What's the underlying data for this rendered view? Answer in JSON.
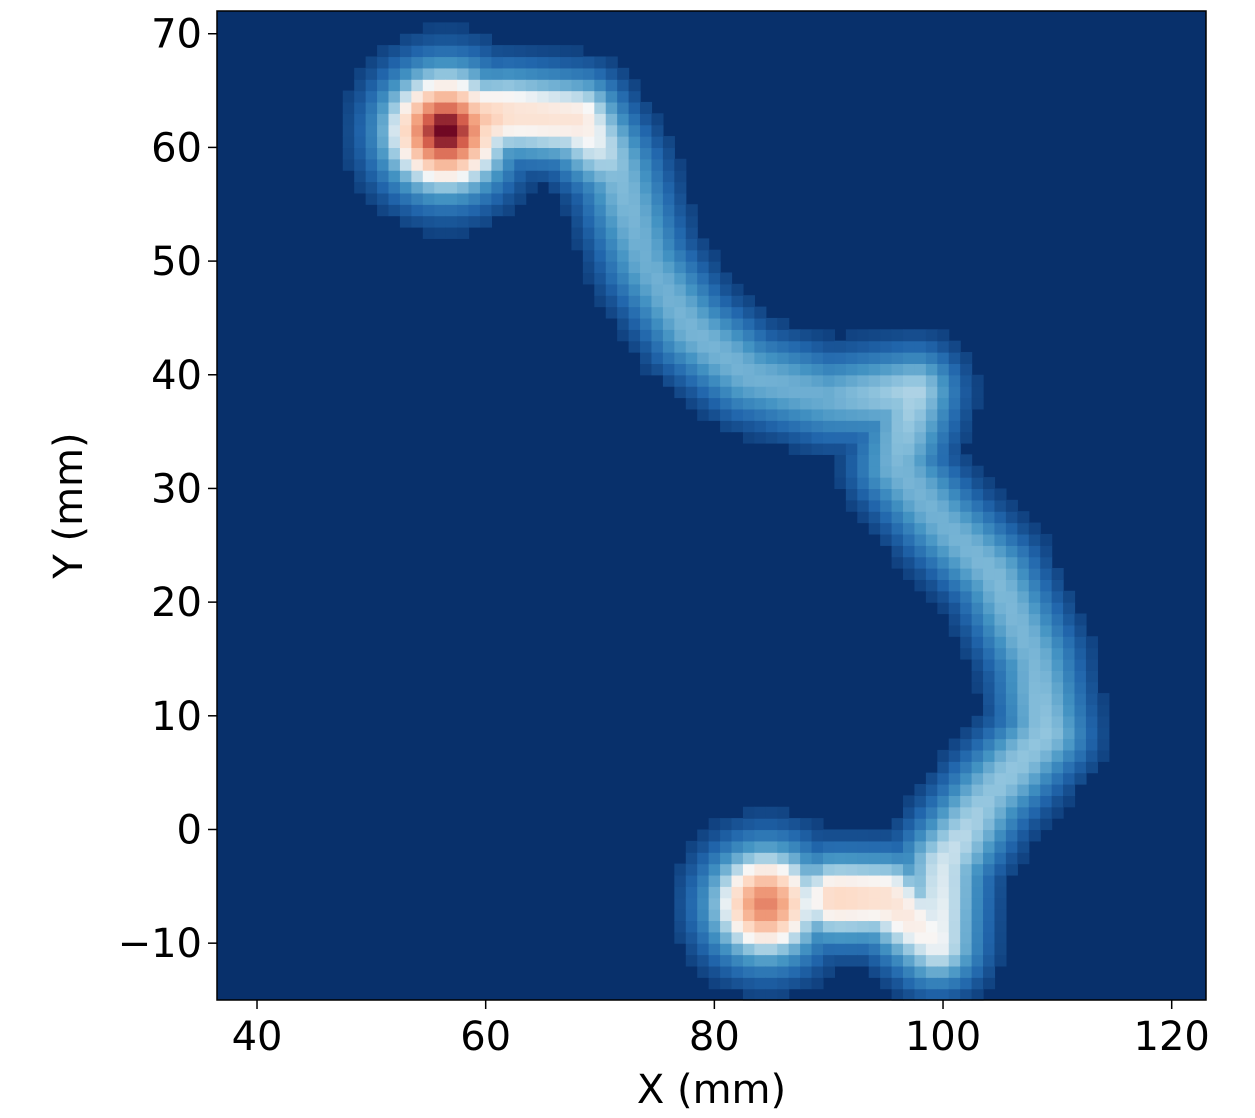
{
  "chart_data": {
    "type": "heatmap",
    "title": "",
    "xlabel": "X (mm)",
    "ylabel": "Y (mm)",
    "xlim": [
      36.5,
      123
    ],
    "ylim": [
      -15,
      72
    ],
    "xticks": [
      40,
      60,
      80,
      100,
      120
    ],
    "xtick_labels": [
      "40",
      "60",
      "80",
      "100",
      "120"
    ],
    "yticks": [
      -10,
      0,
      10,
      20,
      30,
      40,
      50,
      60,
      70
    ],
    "ytick_labels": [
      "−10",
      "0",
      "10",
      "20",
      "30",
      "40",
      "50",
      "60",
      "70"
    ],
    "colormap": "RdBu_r",
    "grid": false,
    "colors": {
      "background": "#08306b",
      "peak": "#67001f"
    },
    "hotspots": [
      {
        "x": 56.5,
        "y": 61.5,
        "intensity": 1.0,
        "sigma": 3.6
      },
      {
        "x": 84.5,
        "y": -6.5,
        "intensity": 0.82,
        "sigma": 3.4
      }
    ],
    "ridge_path": [
      {
        "x": 56.5,
        "y": 62.0,
        "intensity": 0.78
      },
      {
        "x": 62.0,
        "y": 63.0,
        "intensity": 0.6
      },
      {
        "x": 68.0,
        "y": 62.5,
        "intensity": 0.58
      },
      {
        "x": 71.5,
        "y": 58.0,
        "intensity": 0.36
      },
      {
        "x": 74.0,
        "y": 50.0,
        "intensity": 0.32
      },
      {
        "x": 78.0,
        "y": 44.0,
        "intensity": 0.34
      },
      {
        "x": 83.0,
        "y": 40.0,
        "intensity": 0.33
      },
      {
        "x": 90.0,
        "y": 38.0,
        "intensity": 0.32
      },
      {
        "x": 97.5,
        "y": 38.5,
        "intensity": 0.42
      },
      {
        "x": 96.0,
        "y": 32.0,
        "intensity": 0.34
      },
      {
        "x": 100.0,
        "y": 27.0,
        "intensity": 0.33
      },
      {
        "x": 104.5,
        "y": 22.5,
        "intensity": 0.35
      },
      {
        "x": 108.0,
        "y": 15.0,
        "intensity": 0.34
      },
      {
        "x": 109.0,
        "y": 8.5,
        "intensity": 0.38
      },
      {
        "x": 104.0,
        "y": 3.0,
        "intensity": 0.38
      },
      {
        "x": 100.0,
        "y": -3.0,
        "intensity": 0.46
      },
      {
        "x": 99.5,
        "y": -10.0,
        "intensity": 0.5
      },
      {
        "x": 95.0,
        "y": -6.0,
        "intensity": 0.6
      },
      {
        "x": 90.0,
        "y": -6.0,
        "intensity": 0.64
      }
    ]
  }
}
